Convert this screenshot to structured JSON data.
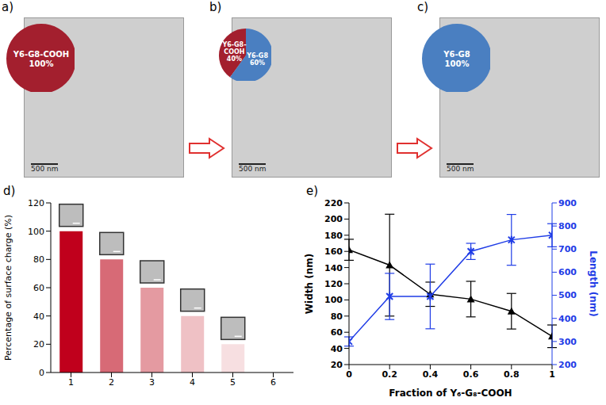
{
  "chart_data": [
    {
      "type": "pie",
      "panel": "a)",
      "categories": [
        "Y6-G8-COOH"
      ],
      "values": [
        100
      ],
      "value_labels": [
        "100%"
      ],
      "colors": [
        "#a31f2e"
      ],
      "data_labels": true,
      "annotations": [
        "500 nm"
      ]
    },
    {
      "type": "pie",
      "panel": "b)",
      "categories": [
        "Y6-G8-COOH",
        "Y6-G8"
      ],
      "values": [
        40,
        60
      ],
      "value_labels": [
        "40%",
        "60%"
      ],
      "colors": [
        "#a31f2e",
        "#4a7fc1"
      ],
      "data_labels": true,
      "annotations": [
        "500 nm"
      ]
    },
    {
      "type": "pie",
      "panel": "c)",
      "categories": [
        "Y6-G8"
      ],
      "values": [
        100
      ],
      "value_labels": [
        "100%"
      ],
      "colors": [
        "#4a7fc1"
      ],
      "data_labels": true,
      "annotations": [
        "500 nm"
      ]
    },
    {
      "type": "bar",
      "panel": "d)",
      "ylabel": "Percentage of surface charge (%)",
      "categories": [
        "1",
        "2",
        "3",
        "4",
        "5",
        "6"
      ],
      "values": [
        100,
        80,
        60,
        40,
        20,
        0
      ],
      "colors": [
        "#c0001c",
        "#d76a76",
        "#e49aa1",
        "#efc1c5",
        "#f7dfe1",
        "#ffffff"
      ],
      "ylim": [
        0,
        120
      ],
      "yticks": [
        0,
        20,
        40,
        60,
        80,
        100,
        120
      ]
    },
    {
      "type": "line",
      "panel": "e)",
      "xlabel": "Fraction of Y₆-G₈-COOH",
      "ylabel": "Width (nm)",
      "y2label": "Length (nm)",
      "x": [
        0,
        0.2,
        0.4,
        0.6,
        0.8,
        1
      ],
      "xlim": [
        0,
        1
      ],
      "xticks": [
        0,
        0.2,
        0.4,
        0.6,
        0.8,
        1
      ],
      "ylim": [
        20,
        220
      ],
      "yticks": [
        20,
        40,
        60,
        80,
        100,
        120,
        140,
        160,
        180,
        200,
        220
      ],
      "y2lim": [
        200,
        900
      ],
      "y2ticks": [
        200,
        300,
        400,
        500,
        600,
        700,
        800,
        900
      ],
      "series": [
        {
          "color": "#000000",
          "marker": "triangle",
          "values": [
            162,
            143,
            107,
            101,
            86,
            55
          ],
          "errors": [
            13,
            63,
            15,
            22,
            22,
            14
          ]
        },
        {
          "axis": "y2",
          "color": "#1f3ce6",
          "marker": "x",
          "values": [
            300,
            495,
            495,
            690,
            740,
            760
          ],
          "errors": [
            20,
            100,
            140,
            35,
            110,
            50
          ]
        }
      ]
    }
  ]
}
